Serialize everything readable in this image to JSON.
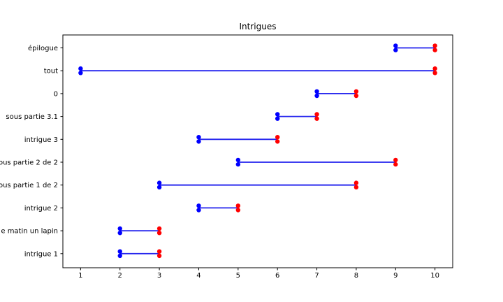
{
  "chart_data": {
    "type": "line",
    "variant": "horizontal-dumbbell",
    "title": "Intrigues",
    "xlabel": "",
    "ylabel": "",
    "xlim": [
      0.55,
      10.45
    ],
    "x_ticks": [
      1,
      2,
      3,
      4,
      5,
      6,
      7,
      8,
      9,
      10
    ],
    "grid": false,
    "legend": null,
    "rows": [
      {
        "label": "épilogue",
        "start": 9,
        "end": 10
      },
      {
        "label": "tout",
        "start": 1,
        "end": 10
      },
      {
        "label": "0",
        "start": 7,
        "end": 8
      },
      {
        "label": "sous partie 3.1",
        "start": 6,
        "end": 7
      },
      {
        "label": "intrigue 3",
        "start": 4,
        "end": 6
      },
      {
        "label": "ous partie 2 de 2",
        "start": 5,
        "end": 9
      },
      {
        "label": "ous partie 1 de 2",
        "start": 3,
        "end": 8
      },
      {
        "label": "intrigue 2",
        "start": 4,
        "end": 5
      },
      {
        "label": "e matin un lapin",
        "start": 2,
        "end": 3
      },
      {
        "label": "intrigue 1",
        "start": 2,
        "end": 3
      }
    ],
    "marker_style": "double-dot",
    "colors": {
      "line": "#2222ee",
      "start_marker": "#0000ff",
      "end_marker": "#ff0000",
      "axis": "#000000",
      "text": "#000000",
      "background": "#ffffff"
    }
  }
}
